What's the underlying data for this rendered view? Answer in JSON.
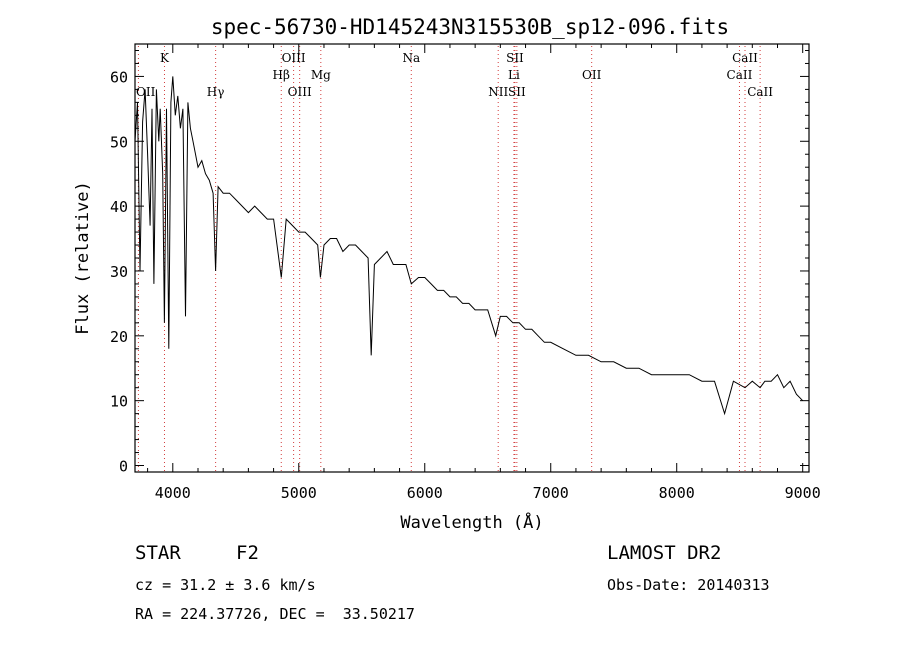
{
  "chart_data": {
    "type": "line",
    "title": "spec-56730-HD145243N315530B_sp12-096.fits",
    "xlabel": "Wavelength (Å)",
    "ylabel": "Flux (relative)",
    "xlim": [
      3700,
      9050
    ],
    "ylim": [
      -1,
      65
    ],
    "xticks": [
      "4000",
      "5000",
      "6000",
      "7000",
      "8000",
      "9000"
    ],
    "yticks": [
      "0",
      "10",
      "20",
      "30",
      "40",
      "50",
      "60"
    ],
    "grid": false,
    "legend": "none",
    "line_color": "#000000",
    "marker_color": "#d23c3c",
    "series": [
      {
        "x": [
          3700,
          3720,
          3740,
          3760,
          3780,
          3800,
          3820,
          3835,
          3850,
          3870,
          3889,
          3900,
          3920,
          3933,
          3950,
          3968,
          3985,
          4000,
          4020,
          4040,
          4060,
          4080,
          4101,
          4120,
          4140,
          4160,
          4180,
          4200,
          4230,
          4260,
          4290,
          4320,
          4340,
          4360,
          4400,
          4450,
          4500,
          4550,
          4600,
          4650,
          4700,
          4750,
          4800,
          4861,
          4900,
          4950,
          5000,
          5050,
          5100,
          5150,
          5172,
          5200,
          5250,
          5300,
          5350,
          5400,
          5450,
          5500,
          5550,
          5575,
          5600,
          5650,
          5700,
          5750,
          5800,
          5850,
          5893,
          5950,
          6000,
          6050,
          6100,
          6150,
          6200,
          6250,
          6300,
          6350,
          6400,
          6450,
          6500,
          6563,
          6600,
          6650,
          6700,
          6750,
          6800,
          6850,
          6900,
          6950,
          7000,
          7100,
          7200,
          7300,
          7400,
          7500,
          7600,
          7700,
          7800,
          7900,
          8000,
          8100,
          8200,
          8300,
          8380,
          8450,
          8542,
          8600,
          8662,
          8700,
          8750,
          8800,
          8850,
          8900,
          8950,
          9000
        ],
        "y": [
          50,
          56,
          30,
          53,
          58,
          48,
          37,
          55,
          28,
          58,
          50,
          55,
          45,
          22,
          55,
          18,
          56,
          60,
          54,
          57,
          52,
          55,
          23,
          56,
          52,
          50,
          48,
          46,
          47,
          45,
          44,
          42,
          30,
          43,
          42,
          42,
          41,
          40,
          39,
          40,
          39,
          38,
          38,
          29,
          38,
          37,
          36,
          36,
          35,
          34,
          29,
          34,
          35,
          35,
          33,
          34,
          34,
          33,
          32,
          17,
          31,
          32,
          33,
          31,
          31,
          31,
          28,
          29,
          29,
          28,
          27,
          27,
          26,
          26,
          25,
          25,
          24,
          24,
          24,
          20,
          23,
          23,
          22,
          22,
          21,
          21,
          20,
          19,
          19,
          18,
          17,
          17,
          16,
          16,
          15,
          15,
          14,
          14,
          14,
          14,
          13,
          13,
          8,
          13,
          12,
          13,
          12,
          13,
          13,
          14,
          12,
          13,
          11,
          10
        ]
      }
    ],
    "lines": [
      {
        "label": "OII",
        "x": 3727,
        "row": 3
      },
      {
        "label": "K",
        "x": 3934,
        "row": 1
      },
      {
        "label": "Hγ",
        "x": 4340,
        "row": 3
      },
      {
        "label": "Hβ",
        "x": 4861,
        "row": 2
      },
      {
        "label": "OIII",
        "x": 4959,
        "row": 1
      },
      {
        "label": "OIII",
        "x": 5007,
        "row": 3
      },
      {
        "label": "Mg",
        "x": 5175,
        "row": 2
      },
      {
        "label": "Na",
        "x": 5893,
        "row": 1
      },
      {
        "label": "NII",
        "x": 6583,
        "row": 3
      },
      {
        "label": "SII",
        "x": 6716,
        "row": 1
      },
      {
        "label": "Li",
        "x": 6708,
        "row": 2
      },
      {
        "label": "SII",
        "x": 6731,
        "row": 3
      },
      {
        "label": "OII",
        "x": 7325,
        "row": 2
      },
      {
        "label": "CaII",
        "x": 8498,
        "row": 2
      },
      {
        "label": "CaII",
        "x": 8542,
        "row": 1
      },
      {
        "label": "CaII",
        "x": 8662,
        "row": 3
      }
    ]
  },
  "info": {
    "class_label": "STAR",
    "subclass": "F2",
    "survey": "LAMOST DR2",
    "cz": "cz = 31.2 ± 3.6 km/s",
    "obs_date": "Obs-Date: 20140313",
    "coords": "RA = 224.37726, DEC =  33.50217"
  }
}
